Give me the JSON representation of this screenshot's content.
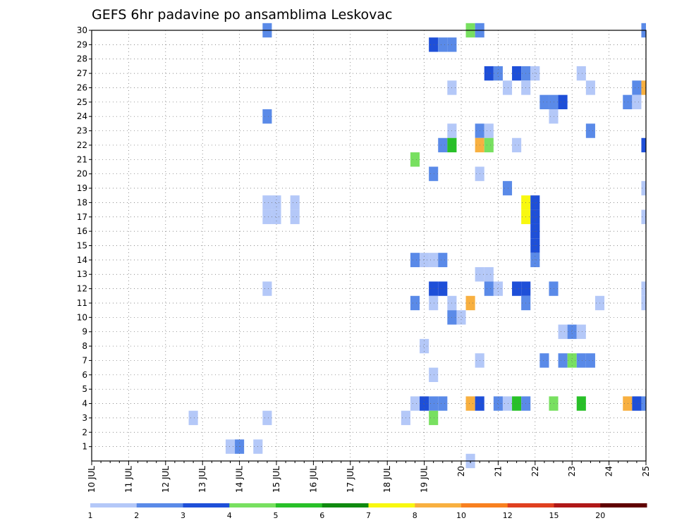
{
  "chart_data": {
    "type": "heatmap",
    "title": "GEFS 6hr padavine po ansamblima Leskovac",
    "xlabel": "",
    "ylabel": "",
    "x_tick_labels": [
      "10 JUL",
      "11 JUL",
      "12 JUL",
      "13 JUL",
      "14 JUL",
      "15 JUL",
      "16 JUL",
      "17 JUL",
      "18 JUL",
      "19 JUL",
      "20",
      "21",
      "22",
      "23",
      "24",
      "25"
    ],
    "x_range_days": [
      10,
      25
    ],
    "y_tick_labels": [
      "1",
      "2",
      "3",
      "4",
      "5",
      "6",
      "7",
      "8",
      "9",
      "10",
      "11",
      "12",
      "13",
      "14",
      "15",
      "16",
      "17",
      "18",
      "19",
      "20",
      "21",
      "22",
      "23",
      "24",
      "25",
      "26",
      "27",
      "28",
      "29",
      "30"
    ],
    "y_range": [
      0,
      30
    ],
    "grid": true,
    "colorbar": {
      "labels": [
        "1",
        "2",
        "3",
        "4",
        "5",
        "6",
        "7",
        "8",
        "10",
        "12",
        "15",
        "20"
      ],
      "colors": [
        "#b4c8f8",
        "#5a8ae8",
        "#1e4fd8",
        "#78e060",
        "#28c028",
        "#108a10",
        "#f8f810",
        "#f8b040",
        "#f88020",
        "#e04020",
        "#b01818",
        "#600000"
      ]
    },
    "cells": [
      {
        "m": 30,
        "d": 14.75,
        "c": 1
      },
      {
        "m": 30,
        "d": 20.25,
        "c": 3
      },
      {
        "m": 30,
        "d": 20.5,
        "c": 1
      },
      {
        "m": 30,
        "d": 25.0,
        "c": 1
      },
      {
        "m": 29,
        "d": 19.25,
        "c": 2
      },
      {
        "m": 29,
        "d": 19.5,
        "c": 1
      },
      {
        "m": 29,
        "d": 19.75,
        "c": 1
      },
      {
        "m": 27,
        "d": 20.75,
        "c": 2
      },
      {
        "m": 27,
        "d": 21.0,
        "c": 1
      },
      {
        "m": 27,
        "d": 21.5,
        "c": 2
      },
      {
        "m": 27,
        "d": 21.75,
        "c": 1
      },
      {
        "m": 27,
        "d": 22.0,
        "c": 0
      },
      {
        "m": 27,
        "d": 23.25,
        "c": 0
      },
      {
        "m": 26,
        "d": 19.75,
        "c": 0
      },
      {
        "m": 26,
        "d": 21.25,
        "c": 0
      },
      {
        "m": 26,
        "d": 21.75,
        "c": 0
      },
      {
        "m": 26,
        "d": 23.5,
        "c": 0
      },
      {
        "m": 26,
        "d": 24.75,
        "c": 1
      },
      {
        "m": 26,
        "d": 25.0,
        "c": 7
      },
      {
        "m": 25,
        "d": 22.25,
        "c": 1
      },
      {
        "m": 25,
        "d": 22.5,
        "c": 1
      },
      {
        "m": 25,
        "d": 22.75,
        "c": 2
      },
      {
        "m": 25,
        "d": 24.5,
        "c": 1
      },
      {
        "m": 25,
        "d": 24.75,
        "c": 0
      },
      {
        "m": 24,
        "d": 14.75,
        "c": 1
      },
      {
        "m": 24,
        "d": 22.5,
        "c": 0
      },
      {
        "m": 23,
        "d": 19.75,
        "c": 0
      },
      {
        "m": 23,
        "d": 20.5,
        "c": 1
      },
      {
        "m": 23,
        "d": 20.75,
        "c": 0
      },
      {
        "m": 23,
        "d": 23.5,
        "c": 1
      },
      {
        "m": 22,
        "d": 19.5,
        "c": 1
      },
      {
        "m": 22,
        "d": 19.75,
        "c": 4
      },
      {
        "m": 22,
        "d": 20.5,
        "c": 7
      },
      {
        "m": 22,
        "d": 20.75,
        "c": 3
      },
      {
        "m": 22,
        "d": 21.5,
        "c": 0
      },
      {
        "m": 22,
        "d": 25.0,
        "c": 2
      },
      {
        "m": 21,
        "d": 18.75,
        "c": 3
      },
      {
        "m": 20,
        "d": 19.25,
        "c": 1
      },
      {
        "m": 20,
        "d": 20.5,
        "c": 0
      },
      {
        "m": 19,
        "d": 21.25,
        "c": 1
      },
      {
        "m": 19,
        "d": 25.0,
        "c": 0
      },
      {
        "m": 18,
        "d": 14.75,
        "c": 0
      },
      {
        "m": 18,
        "d": 15.0,
        "c": 0
      },
      {
        "m": 18,
        "d": 15.5,
        "c": 0
      },
      {
        "m": 18,
        "d": 21.75,
        "c": 6
      },
      {
        "m": 18,
        "d": 22.0,
        "c": 2
      },
      {
        "m": 17,
        "d": 14.75,
        "c": 0
      },
      {
        "m": 17,
        "d": 15.0,
        "c": 0
      },
      {
        "m": 17,
        "d": 15.5,
        "c": 0
      },
      {
        "m": 17,
        "d": 21.75,
        "c": 6
      },
      {
        "m": 17,
        "d": 22.0,
        "c": 2
      },
      {
        "m": 17,
        "d": 25.0,
        "c": 0
      },
      {
        "m": 16,
        "d": 22.0,
        "c": 2
      },
      {
        "m": 15,
        "d": 22.0,
        "c": 2
      },
      {
        "m": 14,
        "d": 18.75,
        "c": 1
      },
      {
        "m": 14,
        "d": 19.0,
        "c": 0
      },
      {
        "m": 14,
        "d": 19.25,
        "c": 0
      },
      {
        "m": 14,
        "d": 19.5,
        "c": 1
      },
      {
        "m": 14,
        "d": 22.0,
        "c": 1
      },
      {
        "m": 13,
        "d": 20.5,
        "c": 0
      },
      {
        "m": 13,
        "d": 20.75,
        "c": 0
      },
      {
        "m": 12,
        "d": 14.75,
        "c": 0
      },
      {
        "m": 12,
        "d": 19.25,
        "c": 2
      },
      {
        "m": 12,
        "d": 19.5,
        "c": 2
      },
      {
        "m": 12,
        "d": 20.75,
        "c": 1
      },
      {
        "m": 12,
        "d": 21.0,
        "c": 0
      },
      {
        "m": 12,
        "d": 21.5,
        "c": 2
      },
      {
        "m": 12,
        "d": 21.75,
        "c": 2
      },
      {
        "m": 12,
        "d": 22.5,
        "c": 1
      },
      {
        "m": 12,
        "d": 25.0,
        "c": 0
      },
      {
        "m": 11,
        "d": 18.75,
        "c": 1
      },
      {
        "m": 11,
        "d": 19.25,
        "c": 0
      },
      {
        "m": 11,
        "d": 19.75,
        "c": 0
      },
      {
        "m": 11,
        "d": 20.25,
        "c": 7
      },
      {
        "m": 11,
        "d": 21.75,
        "c": 1
      },
      {
        "m": 11,
        "d": 23.75,
        "c": 0
      },
      {
        "m": 11,
        "d": 25.0,
        "c": 0
      },
      {
        "m": 10,
        "d": 19.75,
        "c": 1
      },
      {
        "m": 10,
        "d": 20.0,
        "c": 0
      },
      {
        "m": 9,
        "d": 22.75,
        "c": 0
      },
      {
        "m": 9,
        "d": 23.0,
        "c": 1
      },
      {
        "m": 9,
        "d": 23.25,
        "c": 0
      },
      {
        "m": 8,
        "d": 19.0,
        "c": 0
      },
      {
        "m": 7,
        "d": 20.5,
        "c": 0
      },
      {
        "m": 7,
        "d": 22.25,
        "c": 1
      },
      {
        "m": 7,
        "d": 22.75,
        "c": 1
      },
      {
        "m": 7,
        "d": 23.0,
        "c": 3
      },
      {
        "m": 7,
        "d": 23.25,
        "c": 1
      },
      {
        "m": 7,
        "d": 23.5,
        "c": 1
      },
      {
        "m": 6,
        "d": 19.25,
        "c": 0
      },
      {
        "m": 4,
        "d": 18.75,
        "c": 0
      },
      {
        "m": 4,
        "d": 19.0,
        "c": 2
      },
      {
        "m": 4,
        "d": 19.25,
        "c": 1
      },
      {
        "m": 4,
        "d": 19.5,
        "c": 1
      },
      {
        "m": 4,
        "d": 20.25,
        "c": 7
      },
      {
        "m": 4,
        "d": 20.5,
        "c": 2
      },
      {
        "m": 4,
        "d": 21.0,
        "c": 1
      },
      {
        "m": 4,
        "d": 21.25,
        "c": 0
      },
      {
        "m": 4,
        "d": 21.5,
        "c": 4
      },
      {
        "m": 4,
        "d": 21.75,
        "c": 1
      },
      {
        "m": 4,
        "d": 22.5,
        "c": 3
      },
      {
        "m": 4,
        "d": 23.25,
        "c": 4
      },
      {
        "m": 4,
        "d": 24.5,
        "c": 7
      },
      {
        "m": 4,
        "d": 24.75,
        "c": 2
      },
      {
        "m": 4,
        "d": 25.0,
        "c": 1
      },
      {
        "m": 3,
        "d": 12.75,
        "c": 0
      },
      {
        "m": 3,
        "d": 14.75,
        "c": 0
      },
      {
        "m": 3,
        "d": 18.5,
        "c": 0
      },
      {
        "m": 3,
        "d": 19.25,
        "c": 3
      },
      {
        "m": 1,
        "d": 13.75,
        "c": 0
      },
      {
        "m": 1,
        "d": 14.0,
        "c": 1
      },
      {
        "m": 1,
        "d": 14.5,
        "c": 0
      },
      {
        "m": 0,
        "d": 20.25,
        "c": 0
      }
    ]
  }
}
